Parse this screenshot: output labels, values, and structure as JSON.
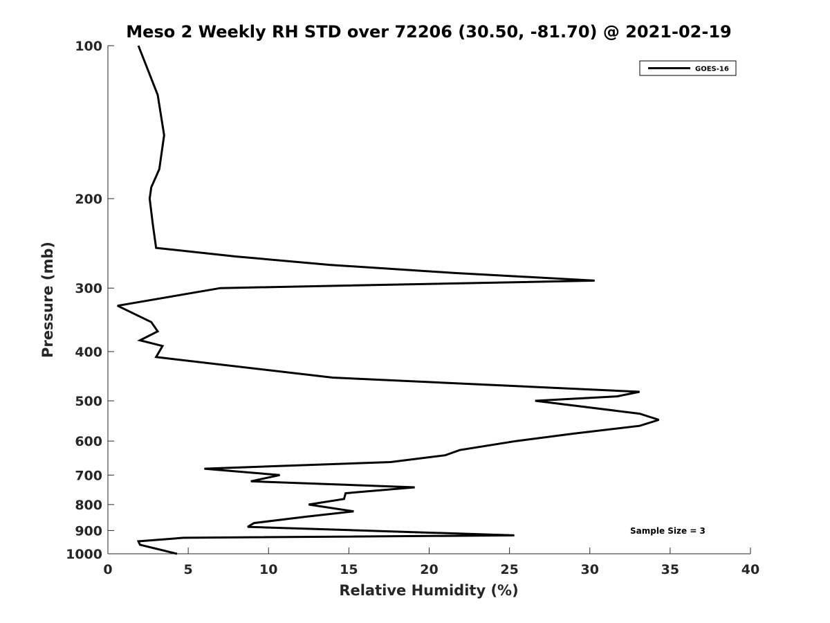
{
  "chart_data": {
    "type": "line",
    "title": "Meso 2 Weekly RH STD over 72206 (30.50, -81.70) @ 2021-02-19",
    "xlabel": "Relative Humidity (%)",
    "ylabel": "Pressure (mb)",
    "xlim": [
      0,
      40
    ],
    "ylim": [
      100,
      1000
    ],
    "y_scale": "log",
    "y_reversed": true,
    "grid": false,
    "legend_position": "top-right",
    "x_ticks": [
      "0",
      "5",
      "10",
      "15",
      "20",
      "25",
      "30",
      "35",
      "40"
    ],
    "y_ticks": [
      "100",
      "200",
      "300",
      "400",
      "500",
      "600",
      "700",
      "800",
      "900",
      "1000"
    ],
    "annotation": "Sample Size = 3",
    "series": [
      {
        "name": "GOES-16",
        "color": "#000000",
        "points": [
          [
            1.9,
            100
          ],
          [
            3.1,
            125
          ],
          [
            3.5,
            150
          ],
          [
            3.2,
            175
          ],
          [
            2.7,
            190
          ],
          [
            2.6,
            200
          ],
          [
            2.8,
            225
          ],
          [
            3.0,
            250
          ],
          [
            8.0,
            260
          ],
          [
            13.8,
            270
          ],
          [
            21.5,
            280
          ],
          [
            30.3,
            290
          ],
          [
            7.0,
            300
          ],
          [
            0.6,
            325
          ],
          [
            2.7,
            350
          ],
          [
            3.1,
            365
          ],
          [
            2.0,
            380
          ],
          [
            3.4,
            390
          ],
          [
            3.0,
            410
          ],
          [
            14.0,
            450
          ],
          [
            33.1,
            480
          ],
          [
            31.7,
            490
          ],
          [
            26.6,
            500
          ],
          [
            33.1,
            530
          ],
          [
            34.3,
            545
          ],
          [
            33.1,
            560
          ],
          [
            29.0,
            580
          ],
          [
            25.4,
            600
          ],
          [
            21.9,
            625
          ],
          [
            21.0,
            640
          ],
          [
            17.6,
            660
          ],
          [
            6.0,
            680
          ],
          [
            10.7,
            700
          ],
          [
            8.9,
            720
          ],
          [
            19.1,
            740
          ],
          [
            14.8,
            760
          ],
          [
            14.7,
            780
          ],
          [
            12.5,
            800
          ],
          [
            15.3,
            825
          ],
          [
            12.4,
            845
          ],
          [
            9.1,
            870
          ],
          [
            8.7,
            885
          ],
          [
            25.3,
            920
          ],
          [
            4.7,
            930
          ],
          [
            1.9,
            945
          ],
          [
            2.0,
            960
          ],
          [
            4.3,
            1000
          ]
        ]
      }
    ]
  }
}
